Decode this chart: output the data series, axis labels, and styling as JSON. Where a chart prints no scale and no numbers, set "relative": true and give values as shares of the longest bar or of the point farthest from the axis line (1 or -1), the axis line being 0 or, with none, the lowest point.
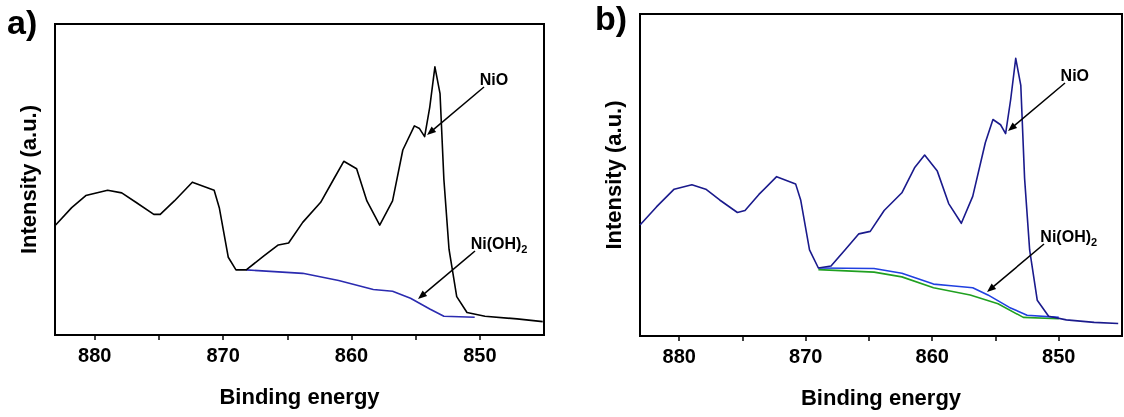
{
  "chart_data": [
    {
      "type": "line",
      "title": "a)",
      "xlabel": "Binding energy",
      "ylabel": "Intensity (a.u.)",
      "relative": true,
      "marker": "none",
      "xlim": [
        883.1,
        845
      ],
      "xticks": [
        880,
        {
          "value": 875,
          "label": null
        },
        870,
        {
          "value": 865,
          "label": null
        },
        860,
        {
          "value": 855,
          "label": null
        },
        850
      ],
      "annotations": [
        {
          "text": "NiO",
          "x": 854.3,
          "y": 0.74
        },
        {
          "text": "Ni(OH)$_{2}$",
          "x": 855.0,
          "y": 0.126
        }
      ],
      "series": [
        {
          "color": "#000000",
          "x": [
            883.05,
            881.8,
            880.7,
            879.0,
            877.9,
            876.8,
            875.4,
            874.9,
            873.8,
            872.4,
            870.7,
            870.3,
            869.6,
            869.0,
            868.2,
            866.8,
            865.7,
            864.9,
            863.8,
            862.4,
            861.4,
            860.6,
            859.6,
            858.8,
            857.8,
            856.8,
            856.0,
            855.1,
            854.7,
            854.3,
            853.9,
            853.5,
            853.1,
            852.8,
            852.4,
            851.8,
            851.0,
            849.6,
            847.1,
            845.1
          ],
          "values": [
            0.41,
            0.475,
            0.52,
            0.54,
            0.53,
            0.495,
            0.45,
            0.45,
            0.5,
            0.57,
            0.54,
            0.475,
            0.29,
            0.243,
            0.243,
            0.296,
            0.336,
            0.343,
            0.42,
            0.495,
            0.58,
            0.648,
            0.62,
            0.5,
            0.41,
            0.5,
            0.69,
            0.78,
            0.77,
            0.74,
            0.85,
            1.0,
            0.9,
            0.58,
            0.32,
            0.143,
            0.084,
            0.07,
            0.06,
            0.05
          ]
        },
        {
          "color": "#2b2bb0",
          "x": [
            868.2,
            863.8,
            861.0,
            858.3,
            856.8,
            855.4,
            853.9,
            852.8,
            850.4
          ],
          "values": [
            0.243,
            0.23,
            0.203,
            0.17,
            0.163,
            0.137,
            0.097,
            0.07,
            0.066
          ]
        }
      ]
    },
    {
      "type": "line",
      "title": "b)",
      "xlabel": "Binding energy",
      "ylabel": "Intensity (a.u.)",
      "relative": true,
      "marker": "none",
      "xlim": [
        883.1,
        845
      ],
      "xticks": [
        880,
        {
          "value": 875,
          "label": null
        },
        870,
        {
          "value": 865,
          "label": null
        },
        860,
        {
          "value": 855,
          "label": null
        },
        850
      ],
      "annotations": [
        {
          "text": "NiO",
          "x": 854.2,
          "y": 0.73
        },
        {
          "text": "Ni(OH)$_{2}$",
          "x": 855.8,
          "y": 0.15
        }
      ],
      "series": [
        {
          "color": "#1a1a8c",
          "x": [
            883.1,
            881.8,
            880.4,
            879.0,
            877.9,
            876.8,
            875.4,
            874.8,
            873.7,
            872.3,
            870.8,
            870.4,
            869.7,
            869.0,
            868.0,
            866.9,
            865.8,
            864.9,
            863.8,
            862.4,
            861.4,
            860.6,
            859.6,
            858.7,
            857.7,
            856.8,
            855.8,
            855.2,
            854.6,
            854.2,
            853.8,
            853.4,
            853.0,
            852.7,
            852.3,
            851.7,
            850.8,
            849.4,
            847.2,
            845.3
          ],
          "values": [
            0.4,
            0.465,
            0.529,
            0.545,
            0.529,
            0.49,
            0.445,
            0.452,
            0.51,
            0.574,
            0.548,
            0.49,
            0.31,
            0.245,
            0.252,
            0.31,
            0.368,
            0.377,
            0.452,
            0.516,
            0.606,
            0.652,
            0.594,
            0.477,
            0.406,
            0.503,
            0.697,
            0.78,
            0.761,
            0.729,
            0.852,
            1.0,
            0.903,
            0.568,
            0.31,
            0.129,
            0.071,
            0.058,
            0.049,
            0.045
          ]
        },
        {
          "color": "#2040e0",
          "x": [
            869.0,
            864.6,
            862.4,
            859.9,
            858.5,
            856.8,
            855.6,
            853.9,
            852.5,
            850.0
          ],
          "values": [
            0.245,
            0.243,
            0.226,
            0.187,
            0.181,
            0.174,
            0.148,
            0.103,
            0.075,
            0.067
          ]
        },
        {
          "color": "#20a020",
          "x": [
            869.0,
            864.6,
            862.4,
            859.9,
            857.0,
            854.8,
            852.8,
            850.0
          ],
          "values": [
            0.239,
            0.23,
            0.213,
            0.174,
            0.148,
            0.116,
            0.067,
            0.062
          ]
        }
      ]
    }
  ]
}
